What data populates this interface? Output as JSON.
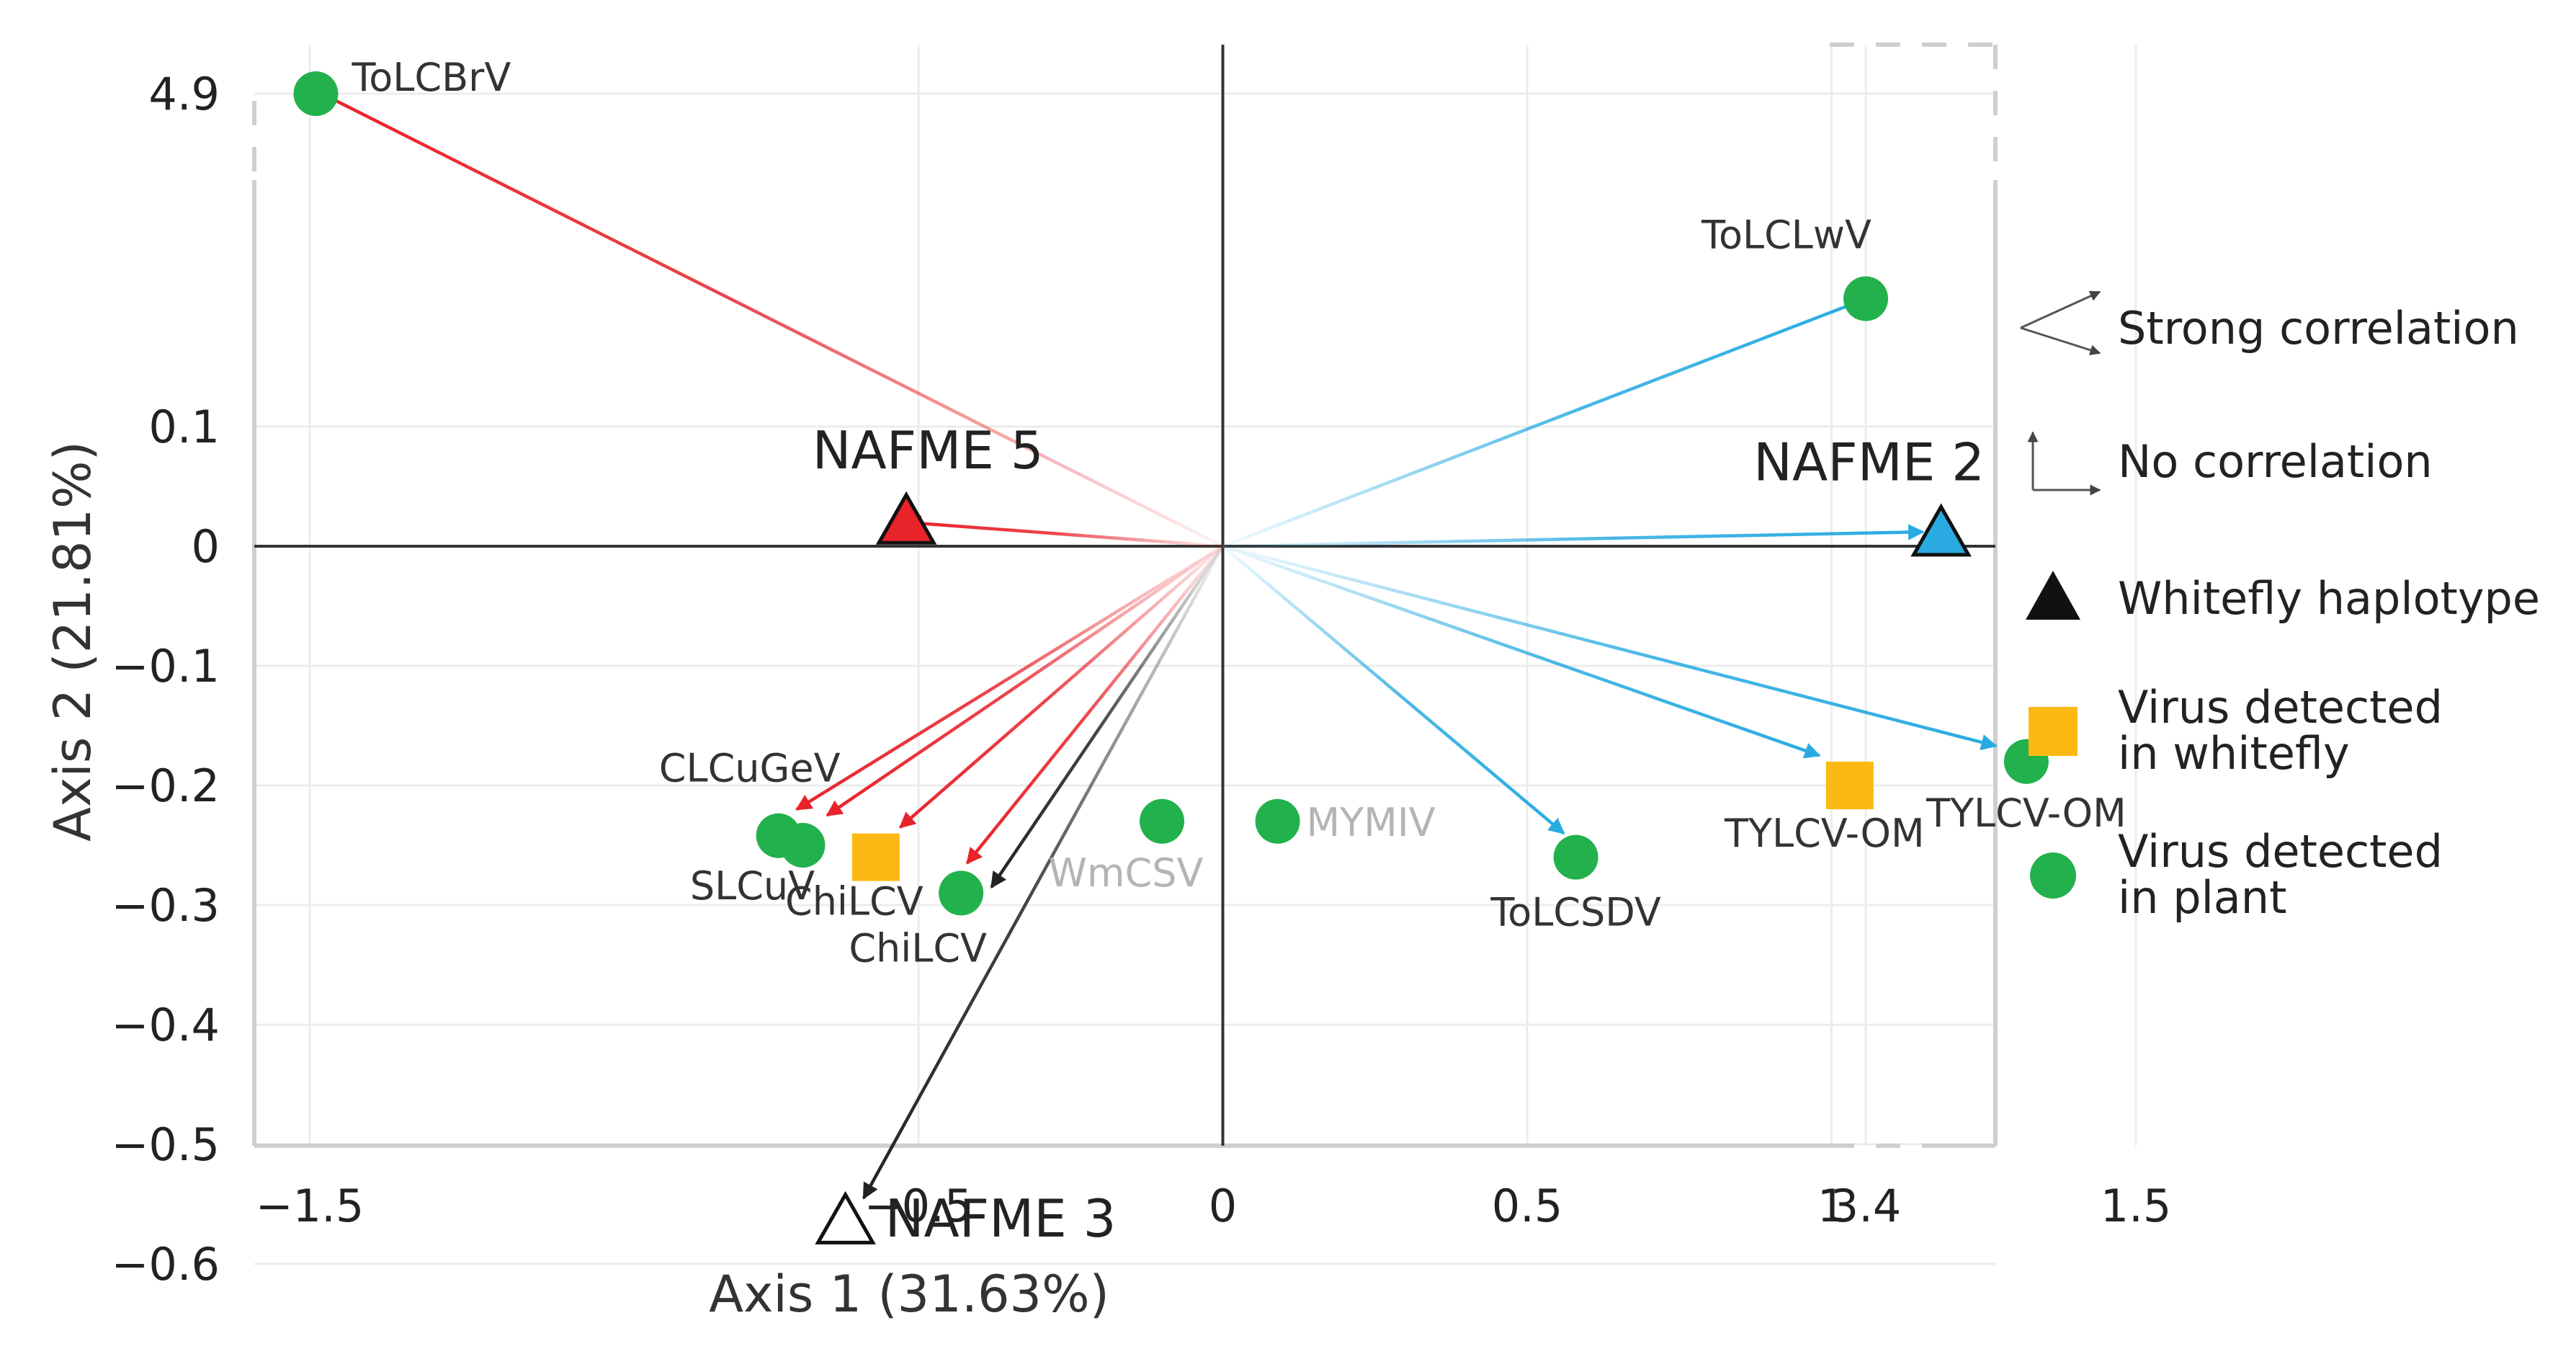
{
  "chart_data": {
    "type": "scatter",
    "title": "",
    "xlabel": "Axis 1 (31.63%)",
    "ylabel": "Axis 2 (21.81%)",
    "xlim": [
      -1.5,
      1.5
    ],
    "ylim": [
      -0.6,
      0.1
    ],
    "axis_breaks": {
      "x": {
        "after": 1.5,
        "break_label": "3.4"
      },
      "y": {
        "after": 0.1,
        "break_label": "4.9"
      }
    },
    "x_ticks": [
      {
        "value": -1.5,
        "label": "−1.5"
      },
      {
        "value": -0.5,
        "label": "−0.5"
      },
      {
        "value": 0,
        "label": "0"
      },
      {
        "value": 0.5,
        "label": "0.5"
      },
      {
        "value": 1,
        "label": "1"
      },
      {
        "value": 1.5,
        "label": "1.5"
      },
      {
        "value": 3.4,
        "label": "3.4"
      }
    ],
    "y_ticks": [
      {
        "value": 4.9,
        "label": "4.9"
      },
      {
        "value": 0.1,
        "label": "0.1"
      },
      {
        "value": 0,
        "label": "0"
      },
      {
        "value": -0.1,
        "label": "−0.1"
      },
      {
        "value": -0.2,
        "label": "−0.2"
      },
      {
        "value": -0.3,
        "label": "−0.3"
      },
      {
        "value": -0.4,
        "label": "−0.4"
      },
      {
        "value": -0.5,
        "label": "−0.5"
      },
      {
        "value": -0.6,
        "label": "−0.6"
      }
    ],
    "grid": true,
    "legend_placement": "right",
    "colors": {
      "red": "#e8232a",
      "blue": "#29abe2",
      "black": "#222222",
      "plant_green": "#22b14c",
      "whitefly_orange": "#fdb913",
      "gray_label": "#b4b4b4"
    },
    "haplotypes": [
      {
        "label": "NAFME 5",
        "x": -0.52,
        "y": 0.02,
        "fill": "#e8232a"
      },
      {
        "label": "NAFME 2",
        "x": 1.18,
        "y": 0.01,
        "fill": "#29abe2"
      },
      {
        "label": "NAFME 3",
        "x": -0.62,
        "y": -0.565,
        "fill": "#ffffff"
      }
    ],
    "plant_viruses": [
      {
        "label": "ToLCBrV",
        "x": -1.49,
        "y": 4.9
      },
      {
        "label": "ToLCLwV",
        "x": 3.4,
        "y": 0.158
      },
      {
        "label": "CLCuGeV",
        "x": -0.73,
        "y": -0.242
      },
      {
        "label": "SLCuV",
        "x": -0.69,
        "y": -0.25
      },
      {
        "label": "ChiLCV",
        "x": -0.43,
        "y": -0.29
      },
      {
        "label": "WmCSV",
        "x": -0.1,
        "y": -0.23
      },
      {
        "label": "MYMIV",
        "x": 0.09,
        "y": -0.23
      },
      {
        "label": "ToLCSDV",
        "x": 0.58,
        "y": -0.26
      },
      {
        "label": "TYLCV-OM",
        "x": 1.32,
        "y": -0.18
      }
    ],
    "whitefly_viruses": [
      {
        "label": "ChiLCV",
        "x": -0.57,
        "y": -0.26
      },
      {
        "label": "TYLCV-OM",
        "x": 1.03,
        "y": -0.2
      }
    ],
    "vectors": [
      {
        "to": [
          -0.52,
          0.02
        ],
        "color": "#e8232a"
      },
      {
        "to": [
          -1.48,
          4.9
        ],
        "color": "#e8232a"
      },
      {
        "to": [
          -0.7,
          -0.22
        ],
        "color": "#e8232a"
      },
      {
        "to": [
          -0.65,
          -0.225
        ],
        "color": "#e8232a"
      },
      {
        "to": [
          -0.53,
          -0.235
        ],
        "color": "#e8232a"
      },
      {
        "to": [
          -0.42,
          -0.265
        ],
        "color": "#e8232a"
      },
      {
        "to": [
          -0.38,
          -0.285
        ],
        "color": "#222222"
      },
      {
        "to": [
          -0.59,
          -0.545
        ],
        "color": "#222222"
      },
      {
        "to": [
          1.15,
          0.012
        ],
        "color": "#29abe2"
      },
      {
        "to": [
          3.38,
          0.152
        ],
        "color": "#29abe2"
      },
      {
        "to": [
          0.56,
          -0.24
        ],
        "color": "#29abe2"
      },
      {
        "to": [
          0.98,
          -0.175
        ],
        "color": "#29abe2"
      },
      {
        "to": [
          1.27,
          -0.167
        ],
        "color": "#29abe2"
      }
    ]
  },
  "legend": [
    {
      "symbol": "strong",
      "label": "Strong correlation"
    },
    {
      "symbol": "none",
      "label": "No correlation"
    },
    {
      "symbol": "triangle",
      "label": "Whitefly haplotype"
    },
    {
      "symbol": "square",
      "label": "Virus detected",
      "label2": "in whitefly"
    },
    {
      "symbol": "circle",
      "label": "Virus detected",
      "label2": "in plant"
    }
  ]
}
